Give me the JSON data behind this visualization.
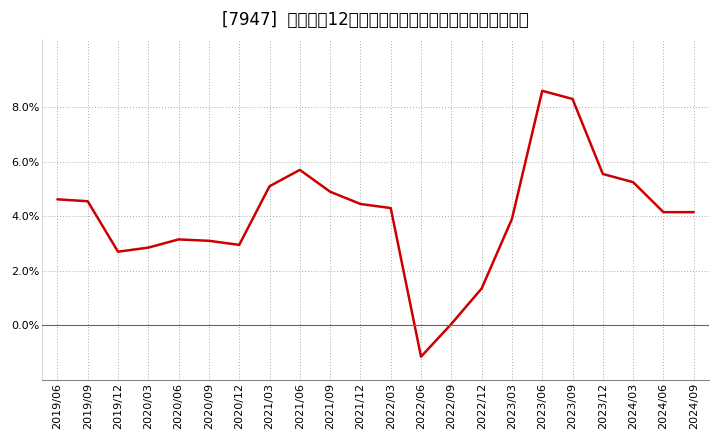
{
  "title": "[7947]  売上高の12か月移動合計の対前年同期増減率の推移",
  "line_color": "#cc0000",
  "background_color": "#ffffff",
  "plot_bg_color": "#ffffff",
  "grid_color": "#aaaaaa",
  "dates": [
    "2019/06",
    "2019/09",
    "2019/12",
    "2020/03",
    "2020/06",
    "2020/09",
    "2020/12",
    "2021/03",
    "2021/06",
    "2021/09",
    "2021/12",
    "2022/03",
    "2022/06",
    "2022/09",
    "2022/12",
    "2023/03",
    "2023/06",
    "2023/09",
    "2023/12",
    "2024/03",
    "2024/06",
    "2024/09"
  ],
  "values": [
    0.0462,
    0.0455,
    0.027,
    0.0285,
    0.0315,
    0.031,
    0.0295,
    0.051,
    0.057,
    0.049,
    0.0445,
    0.043,
    -0.0115,
    0.0005,
    0.0135,
    0.039,
    0.086,
    0.083,
    0.0555,
    0.0525,
    0.0415,
    0.0415
  ],
  "ylim": [
    -0.02,
    0.105
  ],
  "yticks": [
    0.0,
    0.02,
    0.04,
    0.06,
    0.08
  ],
  "title_fontsize": 12,
  "tick_fontsize": 8
}
